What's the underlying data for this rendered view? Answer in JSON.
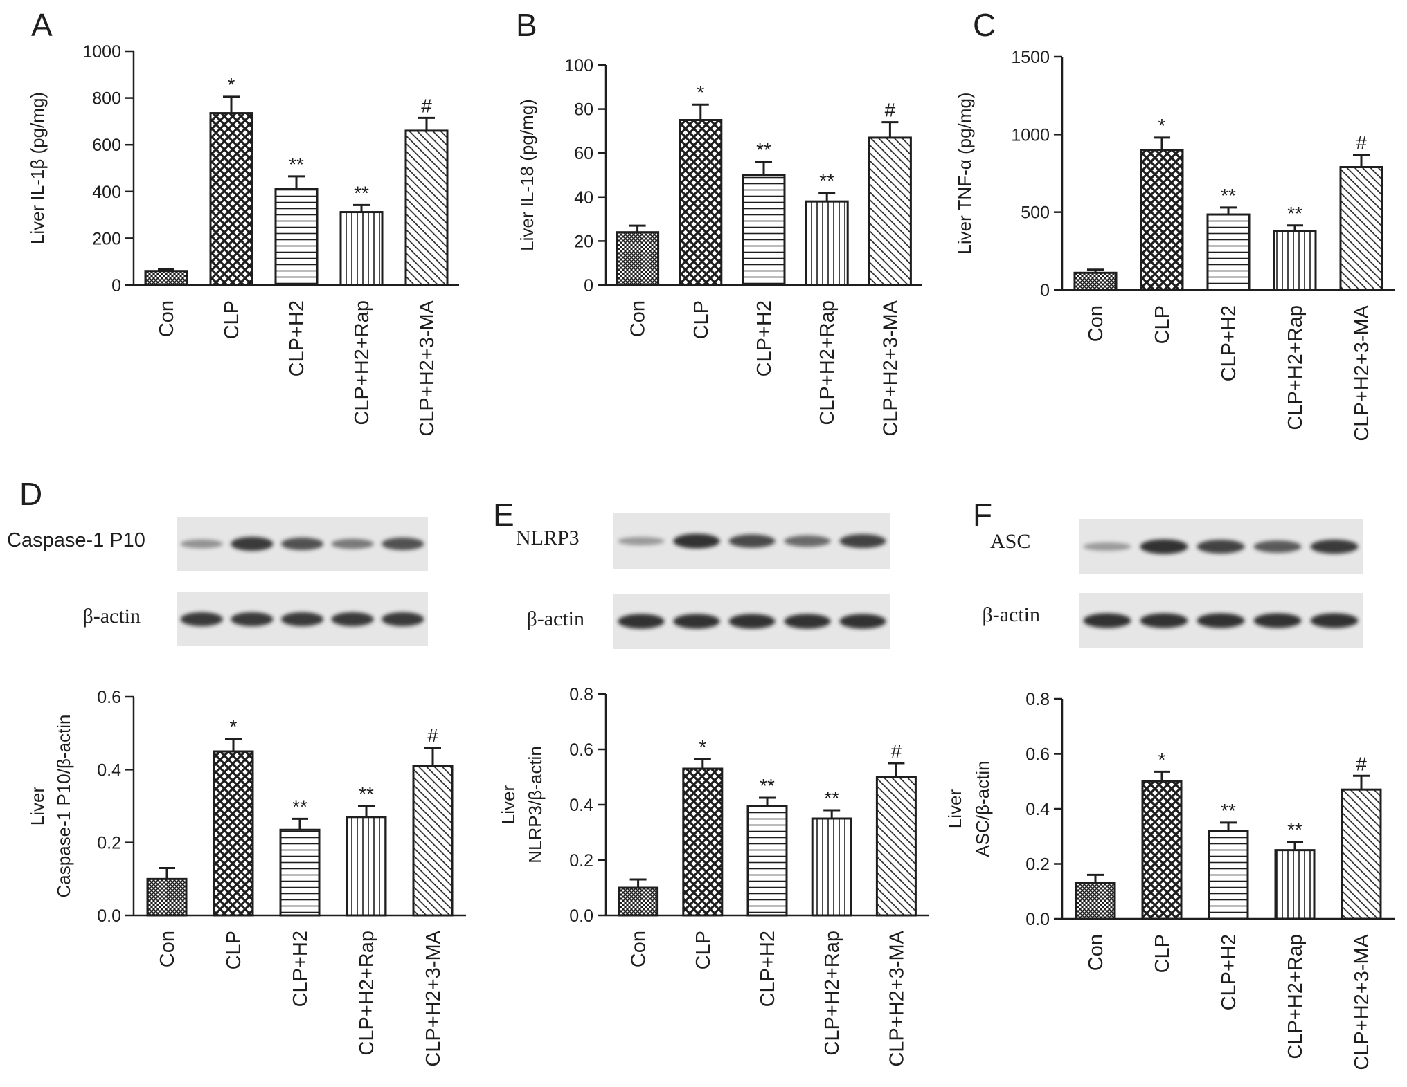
{
  "colors": {
    "ink": "#1e1e1e",
    "blot_bg": "#e6e6e6",
    "band": "#2a2a2a",
    "background": "#ffffff"
  },
  "categories": [
    "Con",
    "CLP",
    "CLP+H2",
    "CLP+H2+Rap",
    "CLP+H2+3-MA"
  ],
  "patterns": [
    "crosshatch-fine",
    "checker-coarse",
    "horizontal-lines",
    "vertical-lines",
    "diagonal-lines"
  ],
  "blots": [
    {
      "panel": "D",
      "target_label": "Caspase-1 P10",
      "loading_label": "β-actin",
      "target_band_intensity": [
        0.35,
        0.9,
        0.75,
        0.5,
        0.75
      ],
      "loading_band_intensity": [
        0.9,
        0.9,
        0.9,
        0.9,
        0.9
      ]
    },
    {
      "panel": "E",
      "target_label": "NLRP3",
      "loading_label": "β-actin",
      "target_band_intensity": [
        0.3,
        0.95,
        0.8,
        0.6,
        0.85
      ],
      "loading_band_intensity": [
        0.95,
        0.95,
        0.95,
        0.95,
        0.95
      ]
    },
    {
      "panel": "F",
      "target_label": "ASC",
      "loading_label": "β-actin",
      "target_band_intensity": [
        0.3,
        0.95,
        0.85,
        0.7,
        0.9
      ],
      "loading_band_intensity": [
        0.95,
        0.95,
        0.95,
        0.95,
        0.95
      ]
    }
  ],
  "chart_data": [
    {
      "panel": "A",
      "type": "bar",
      "ylabel": "Liver IL-1β (pg/mg)",
      "categories": [
        "Con",
        "CLP",
        "CLP+H2",
        "CLP+H2+Rap",
        "CLP+H2+3-MA"
      ],
      "values": [
        60,
        735,
        410,
        312,
        660
      ],
      "errors": [
        8,
        70,
        55,
        30,
        55
      ],
      "significance": [
        "",
        "*",
        "**",
        "**",
        "#"
      ],
      "ylim": [
        0,
        1000
      ],
      "yticks": [
        "0",
        "200",
        "400",
        "600",
        "800",
        "1000"
      ],
      "ytick_values": [
        0,
        200,
        400,
        600,
        800,
        1000
      ]
    },
    {
      "panel": "B",
      "type": "bar",
      "ylabel": "Liver IL-18 (pg/mg)",
      "categories": [
        "Con",
        "CLP",
        "CLP+H2",
        "CLP+H2+Rap",
        "CLP+H2+3-MA"
      ],
      "values": [
        24,
        75,
        50,
        38,
        67
      ],
      "errors": [
        3,
        7,
        6,
        4,
        7
      ],
      "significance": [
        "",
        "*",
        "**",
        "**",
        "#"
      ],
      "ylim": [
        0,
        100
      ],
      "yticks": [
        "0",
        "20",
        "40",
        "60",
        "80",
        "100"
      ],
      "ytick_values": [
        0,
        20,
        40,
        60,
        80,
        100
      ]
    },
    {
      "panel": "C",
      "type": "bar",
      "ylabel": "Liver TNF-α (pg/mg)",
      "categories": [
        "Con",
        "CLP",
        "CLP+H2",
        "CLP+H2+Rap",
        "CLP+H2+3-MA"
      ],
      "values": [
        110,
        900,
        485,
        380,
        790
      ],
      "errors": [
        20,
        80,
        45,
        35,
        80
      ],
      "significance": [
        "",
        "*",
        "**",
        "**",
        "#"
      ],
      "ylim": [
        0,
        1500
      ],
      "yticks": [
        "0",
        "500",
        "1000",
        "1500"
      ],
      "ytick_values": [
        0,
        500,
        1000,
        1500
      ]
    },
    {
      "panel": "D",
      "type": "bar",
      "ylabel_lines": [
        "Liver",
        "Caspase-1 P10/β-actin"
      ],
      "categories": [
        "Con",
        "CLP",
        "CLP+H2",
        "CLP+H2+Rap",
        "CLP+H2+3-MA"
      ],
      "values": [
        0.1,
        0.45,
        0.235,
        0.27,
        0.41
      ],
      "errors": [
        0.03,
        0.035,
        0.03,
        0.03,
        0.05
      ],
      "significance": [
        "",
        "*",
        "**",
        "**",
        "#"
      ],
      "ylim": [
        0,
        0.6
      ],
      "yticks": [
        "0.0",
        "0.2",
        "0.4",
        "0.6"
      ],
      "ytick_values": [
        0,
        0.2,
        0.4,
        0.6
      ]
    },
    {
      "panel": "E",
      "type": "bar",
      "ylabel_lines": [
        "Liver",
        "NLRP3/β-actin"
      ],
      "categories": [
        "Con",
        "CLP",
        "CLP+H2",
        "CLP+H2+Rap",
        "CLP+H2+3-MA"
      ],
      "values": [
        0.1,
        0.53,
        0.395,
        0.35,
        0.5
      ],
      "errors": [
        0.03,
        0.035,
        0.03,
        0.03,
        0.05
      ],
      "significance": [
        "",
        "*",
        "**",
        "**",
        "#"
      ],
      "ylim": [
        0,
        0.8
      ],
      "yticks": [
        "0.0",
        "0.2",
        "0.4",
        "0.6",
        "0.8"
      ],
      "ytick_values": [
        0,
        0.2,
        0.4,
        0.6,
        0.8
      ]
    },
    {
      "panel": "F",
      "type": "bar",
      "ylabel_lines": [
        "Liver",
        "ASC/β-actin"
      ],
      "categories": [
        "Con",
        "CLP",
        "CLP+H2",
        "CLP+H2+Rap",
        "CLP+H2+3-MA"
      ],
      "values": [
        0.13,
        0.5,
        0.32,
        0.25,
        0.47
      ],
      "errors": [
        0.03,
        0.035,
        0.03,
        0.03,
        0.05
      ],
      "significance": [
        "",
        "*",
        "**",
        "**",
        "#"
      ],
      "ylim": [
        0,
        0.8
      ],
      "yticks": [
        "0.0",
        "0.2",
        "0.4",
        "0.6",
        "0.8"
      ],
      "ytick_values": [
        0,
        0.2,
        0.4,
        0.6,
        0.8
      ]
    }
  ]
}
